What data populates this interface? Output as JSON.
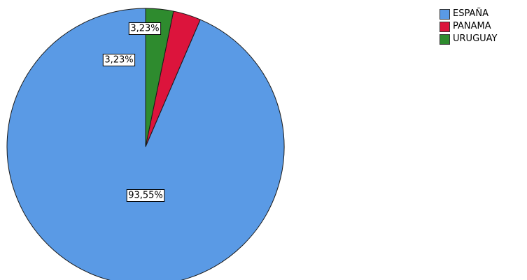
{
  "chart_data": {
    "type": "pie",
    "categories": [
      "ESPAÑA",
      "PANAMA",
      "URUGUAY"
    ],
    "values": [
      93.55,
      3.23,
      3.23
    ],
    "data_labels": [
      "93,55%",
      "3,23%",
      "3,23%"
    ],
    "colors": [
      "#5A9AE5",
      "#DC143C",
      "#2E8B2E"
    ],
    "start_angle_deg": 0,
    "direction": "counterclockwise",
    "legend": {
      "placement": "top-right",
      "entries": [
        "ESPAÑA",
        "PANAMA",
        "URUGUAY"
      ]
    }
  }
}
